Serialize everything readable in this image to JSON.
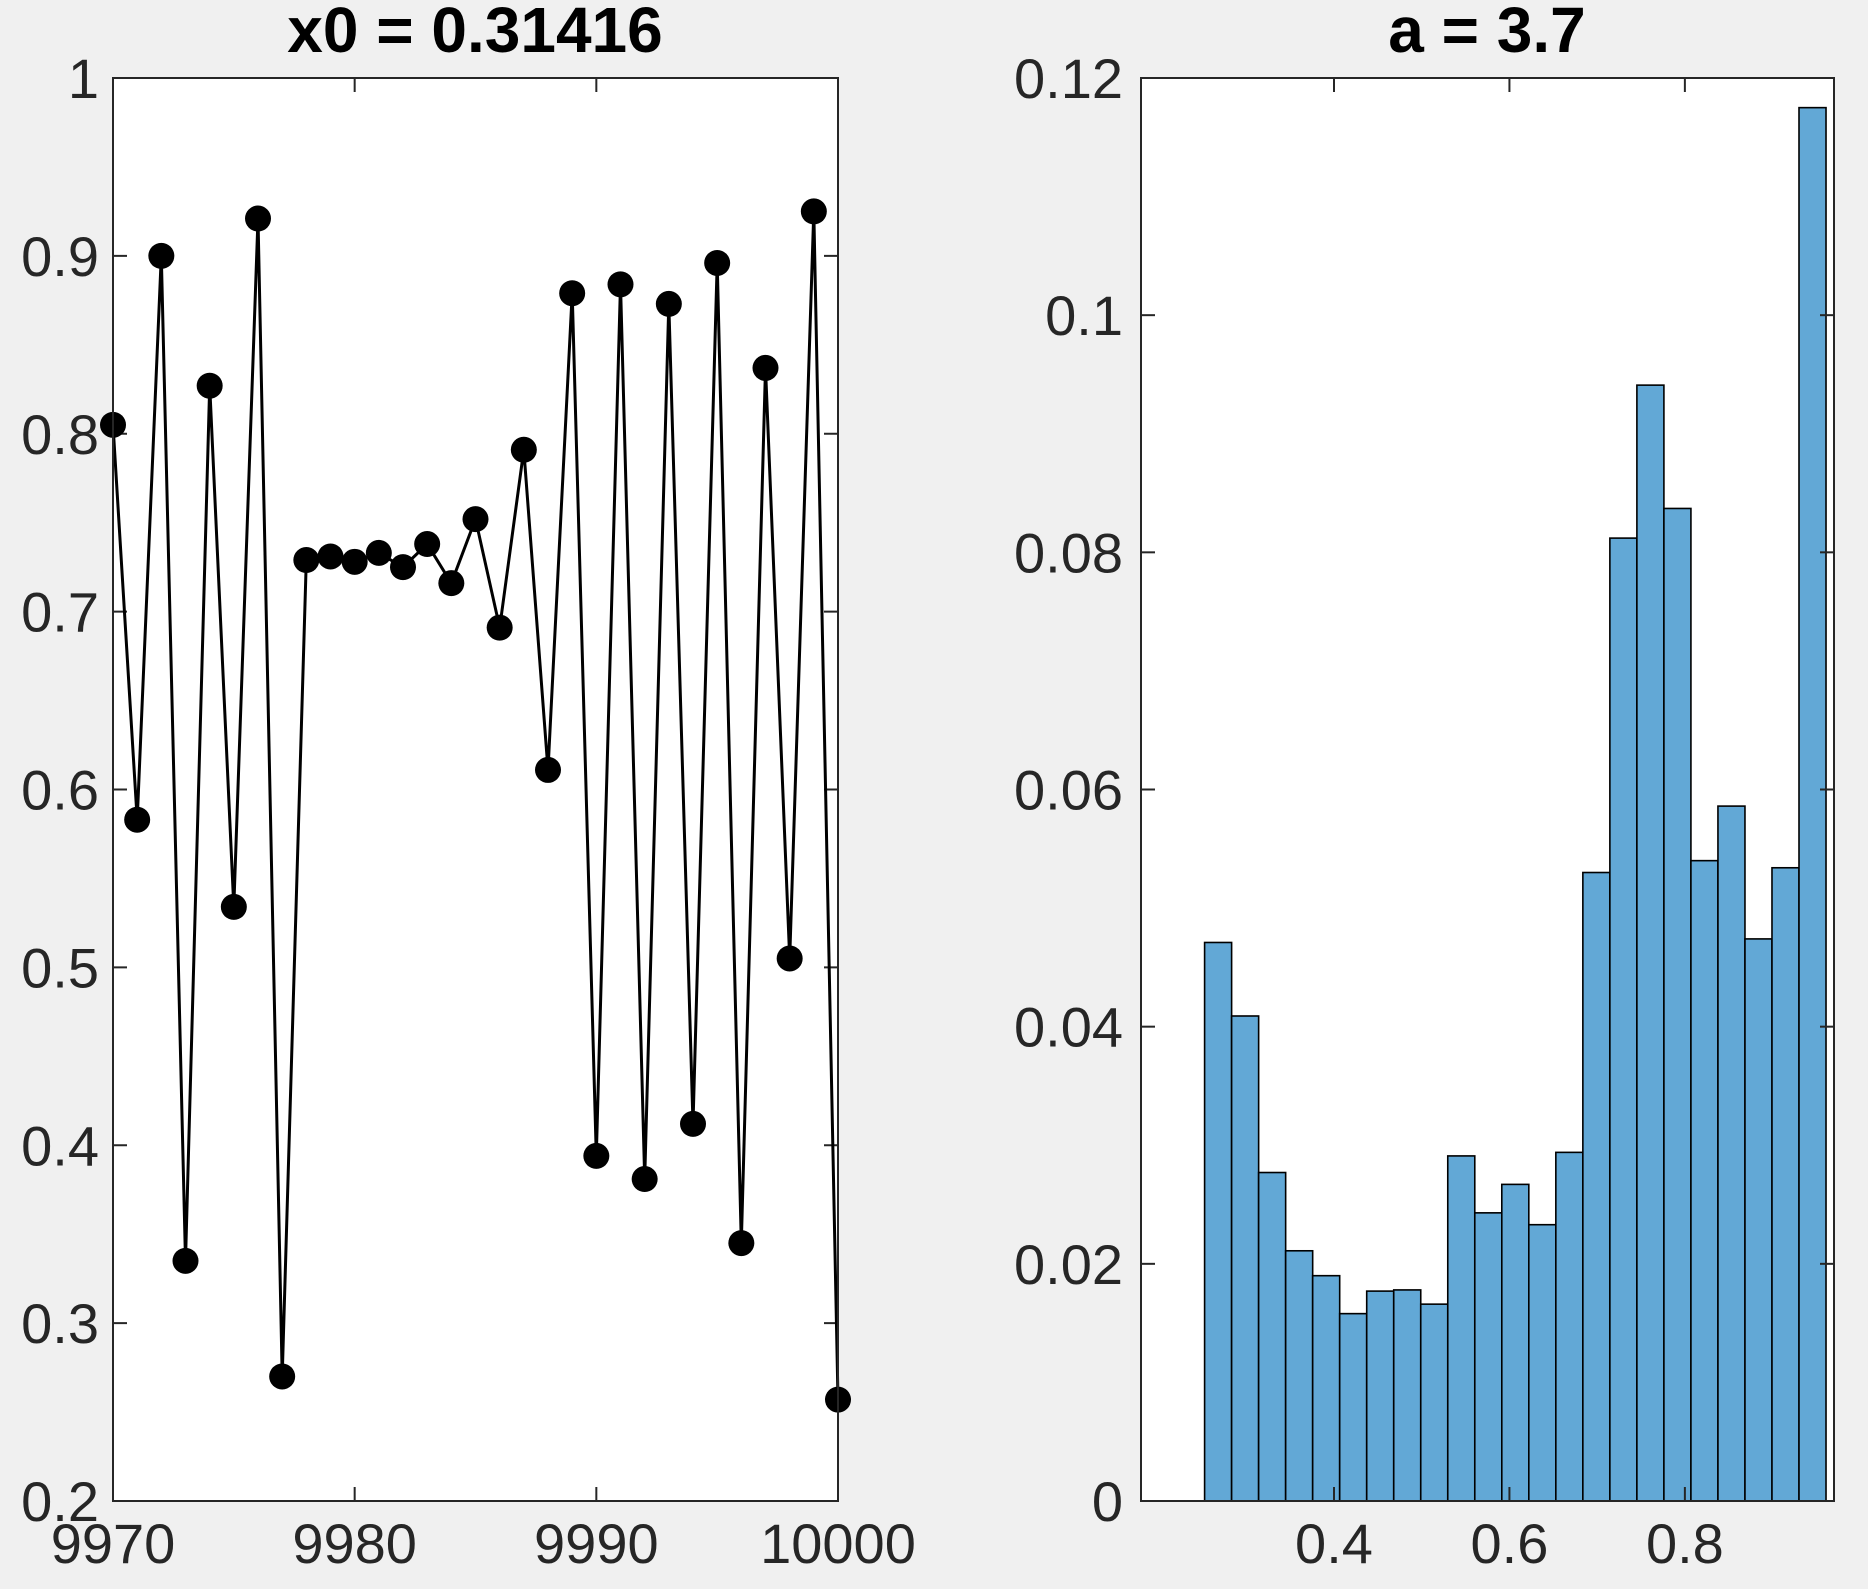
{
  "chart_data": [
    {
      "type": "line",
      "title": "x0 = 0.31416",
      "xlabel": "",
      "ylabel": "",
      "xlim": [
        9970,
        10000
      ],
      "ylim": [
        0.2,
        1
      ],
      "xticks": [
        9970,
        9980,
        9990,
        10000
      ],
      "yticks": [
        0.2,
        0.3,
        0.4,
        0.5,
        0.6,
        0.7,
        0.8,
        0.9,
        1
      ],
      "ytick_labels": [
        "0.2",
        "0.3",
        "0.4",
        "0.5",
        "0.6",
        "0.7",
        "0.8",
        "0.9",
        "1"
      ],
      "grid": false,
      "series": [
        {
          "color": "#000000",
          "marker": "circle",
          "x": [
            9970,
            9971,
            9972,
            9973,
            9974,
            9975,
            9976,
            9977,
            9978,
            9979,
            9980,
            9981,
            9982,
            9983,
            9984,
            9985,
            9986,
            9987,
            9988,
            9989,
            9990,
            9991,
            9992,
            9993,
            9994,
            9995,
            9996,
            9997,
            9998,
            9999,
            10000
          ],
          "y": [
            0.805,
            0.583,
            0.9,
            0.335,
            0.827,
            0.534,
            0.921,
            0.27,
            0.729,
            0.731,
            0.728,
            0.733,
            0.725,
            0.738,
            0.716,
            0.752,
            0.691,
            0.791,
            0.611,
            0.879,
            0.394,
            0.884,
            0.381,
            0.873,
            0.412,
            0.896,
            0.345,
            0.837,
            0.505,
            0.925,
            0.257
          ]
        }
      ]
    },
    {
      "type": "bar",
      "title": "a = 3.7",
      "xlabel": "",
      "ylabel": "",
      "xlim": [
        0.18,
        0.97
      ],
      "ylim": [
        0,
        0.12
      ],
      "xticks": [
        0.4,
        0.6,
        0.8
      ],
      "xtick_labels": [
        "0.4",
        "0.6",
        "0.8"
      ],
      "yticks": [
        0,
        0.02,
        0.04,
        0.06,
        0.08,
        0.1,
        0.12
      ],
      "ytick_labels": [
        "0",
        "0.02",
        "0.04",
        "0.06",
        "0.08",
        "0.1",
        "0.12"
      ],
      "grid": false,
      "bar_color": "#62a8d6",
      "bin_start": 0.2525,
      "bin_width": 0.0308,
      "values": [
        0.0471,
        0.0409,
        0.0277,
        0.0211,
        0.019,
        0.0158,
        0.0177,
        0.0178,
        0.0166,
        0.0291,
        0.0243,
        0.0267,
        0.0233,
        0.0294,
        0.053,
        0.0812,
        0.0941,
        0.0837,
        0.054,
        0.0586,
        0.0474,
        0.0534,
        0.1175
      ]
    }
  ]
}
